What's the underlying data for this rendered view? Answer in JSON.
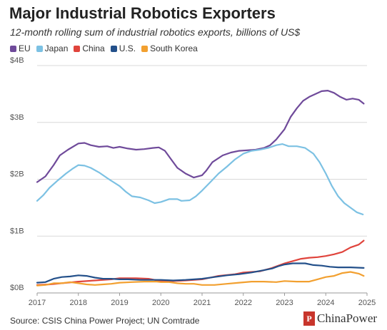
{
  "chart_data": {
    "type": "line",
    "title": "Major Industrial Robotics Exporters",
    "subtitle": "12-month rolling sum of industrial robotics exports, billions of US$",
    "xlabel": "",
    "ylabel": "",
    "xlim": [
      2017.0,
      2025.0
    ],
    "ylim": [
      0,
      4
    ],
    "x_ticks": [
      "2017",
      "2018",
      "2019",
      "2020",
      "2021",
      "2022",
      "2023",
      "2024",
      "2025"
    ],
    "y_ticks": [
      "$0B",
      "$1B",
      "$2B",
      "$3B",
      "$4B"
    ],
    "grid": "horizontal",
    "legend_position": "top-left",
    "series": [
      {
        "name": "EU",
        "color": "#6f4a9a",
        "points": [
          [
            2017.0,
            1.95
          ],
          [
            2017.2,
            2.05
          ],
          [
            2017.4,
            2.25
          ],
          [
            2017.55,
            2.42
          ],
          [
            2017.75,
            2.52
          ],
          [
            2018.0,
            2.63
          ],
          [
            2018.15,
            2.64
          ],
          [
            2018.3,
            2.6
          ],
          [
            2018.5,
            2.57
          ],
          [
            2018.7,
            2.58
          ],
          [
            2018.85,
            2.55
          ],
          [
            2019.0,
            2.57
          ],
          [
            2019.2,
            2.54
          ],
          [
            2019.4,
            2.52
          ],
          [
            2019.6,
            2.53
          ],
          [
            2019.8,
            2.55
          ],
          [
            2019.95,
            2.56
          ],
          [
            2020.1,
            2.5
          ],
          [
            2020.25,
            2.35
          ],
          [
            2020.4,
            2.2
          ],
          [
            2020.6,
            2.1
          ],
          [
            2020.8,
            2.03
          ],
          [
            2021.0,
            2.07
          ],
          [
            2021.1,
            2.15
          ],
          [
            2021.25,
            2.3
          ],
          [
            2021.5,
            2.42
          ],
          [
            2021.7,
            2.47
          ],
          [
            2021.9,
            2.5
          ],
          [
            2022.1,
            2.51
          ],
          [
            2022.3,
            2.52
          ],
          [
            2022.5,
            2.55
          ],
          [
            2022.65,
            2.6
          ],
          [
            2022.8,
            2.7
          ],
          [
            2023.0,
            2.88
          ],
          [
            2023.15,
            3.1
          ],
          [
            2023.3,
            3.25
          ],
          [
            2023.45,
            3.38
          ],
          [
            2023.6,
            3.45
          ],
          [
            2023.75,
            3.5
          ],
          [
            2023.9,
            3.55
          ],
          [
            2024.05,
            3.56
          ],
          [
            2024.2,
            3.52
          ],
          [
            2024.35,
            3.45
          ],
          [
            2024.5,
            3.4
          ],
          [
            2024.65,
            3.42
          ],
          [
            2024.8,
            3.4
          ],
          [
            2024.92,
            3.33
          ]
        ]
      },
      {
        "name": "Japan",
        "color": "#7cc1e3",
        "points": [
          [
            2017.0,
            1.62
          ],
          [
            2017.15,
            1.72
          ],
          [
            2017.3,
            1.85
          ],
          [
            2017.5,
            1.98
          ],
          [
            2017.7,
            2.1
          ],
          [
            2017.85,
            2.18
          ],
          [
            2018.0,
            2.25
          ],
          [
            2018.15,
            2.24
          ],
          [
            2018.3,
            2.2
          ],
          [
            2018.5,
            2.12
          ],
          [
            2018.7,
            2.02
          ],
          [
            2018.85,
            1.95
          ],
          [
            2019.0,
            1.88
          ],
          [
            2019.15,
            1.78
          ],
          [
            2019.3,
            1.7
          ],
          [
            2019.5,
            1.68
          ],
          [
            2019.7,
            1.63
          ],
          [
            2019.85,
            1.58
          ],
          [
            2020.0,
            1.6
          ],
          [
            2020.2,
            1.65
          ],
          [
            2020.4,
            1.65
          ],
          [
            2020.5,
            1.62
          ],
          [
            2020.7,
            1.63
          ],
          [
            2020.85,
            1.7
          ],
          [
            2021.0,
            1.8
          ],
          [
            2021.2,
            1.95
          ],
          [
            2021.4,
            2.1
          ],
          [
            2021.6,
            2.22
          ],
          [
            2021.8,
            2.35
          ],
          [
            2022.0,
            2.45
          ],
          [
            2022.2,
            2.5
          ],
          [
            2022.4,
            2.52
          ],
          [
            2022.6,
            2.55
          ],
          [
            2022.8,
            2.6
          ],
          [
            2022.95,
            2.62
          ],
          [
            2023.1,
            2.58
          ],
          [
            2023.3,
            2.58
          ],
          [
            2023.5,
            2.55
          ],
          [
            2023.7,
            2.45
          ],
          [
            2023.85,
            2.3
          ],
          [
            2024.0,
            2.1
          ],
          [
            2024.15,
            1.88
          ],
          [
            2024.3,
            1.7
          ],
          [
            2024.45,
            1.58
          ],
          [
            2024.6,
            1.5
          ],
          [
            2024.75,
            1.42
          ],
          [
            2024.9,
            1.38
          ]
        ]
      },
      {
        "name": "China",
        "color": "#e0443c",
        "points": [
          [
            2017.0,
            0.14
          ],
          [
            2017.3,
            0.15
          ],
          [
            2017.6,
            0.17
          ],
          [
            2018.0,
            0.2
          ],
          [
            2018.4,
            0.22
          ],
          [
            2018.8,
            0.24
          ],
          [
            2019.0,
            0.26
          ],
          [
            2019.4,
            0.26
          ],
          [
            2019.7,
            0.25
          ],
          [
            2020.0,
            0.21
          ],
          [
            2020.3,
            0.21
          ],
          [
            2020.6,
            0.22
          ],
          [
            2021.0,
            0.24
          ],
          [
            2021.4,
            0.3
          ],
          [
            2021.8,
            0.33
          ],
          [
            2022.0,
            0.36
          ],
          [
            2022.4,
            0.38
          ],
          [
            2022.7,
            0.44
          ],
          [
            2023.0,
            0.52
          ],
          [
            2023.2,
            0.56
          ],
          [
            2023.4,
            0.6
          ],
          [
            2023.6,
            0.62
          ],
          [
            2023.8,
            0.63
          ],
          [
            2024.0,
            0.65
          ],
          [
            2024.2,
            0.68
          ],
          [
            2024.4,
            0.72
          ],
          [
            2024.6,
            0.8
          ],
          [
            2024.8,
            0.85
          ],
          [
            2024.92,
            0.92
          ]
        ]
      },
      {
        "name": "U.S.",
        "color": "#23508a",
        "points": [
          [
            2017.0,
            0.18
          ],
          [
            2017.2,
            0.19
          ],
          [
            2017.4,
            0.25
          ],
          [
            2017.6,
            0.28
          ],
          [
            2017.8,
            0.29
          ],
          [
            2018.0,
            0.31
          ],
          [
            2018.2,
            0.3
          ],
          [
            2018.4,
            0.27
          ],
          [
            2018.6,
            0.25
          ],
          [
            2018.8,
            0.25
          ],
          [
            2019.0,
            0.24
          ],
          [
            2019.2,
            0.24
          ],
          [
            2019.5,
            0.23
          ],
          [
            2019.8,
            0.23
          ],
          [
            2020.0,
            0.23
          ],
          [
            2020.3,
            0.22
          ],
          [
            2020.6,
            0.23
          ],
          [
            2021.0,
            0.25
          ],
          [
            2021.3,
            0.28
          ],
          [
            2021.6,
            0.31
          ],
          [
            2021.9,
            0.33
          ],
          [
            2022.2,
            0.36
          ],
          [
            2022.5,
            0.4
          ],
          [
            2022.7,
            0.43
          ],
          [
            2022.85,
            0.47
          ],
          [
            2023.0,
            0.5
          ],
          [
            2023.2,
            0.52
          ],
          [
            2023.5,
            0.52
          ],
          [
            2023.7,
            0.49
          ],
          [
            2023.9,
            0.48
          ],
          [
            2024.1,
            0.46
          ],
          [
            2024.3,
            0.45
          ],
          [
            2024.6,
            0.45
          ],
          [
            2024.92,
            0.44
          ]
        ]
      },
      {
        "name": "South Korea",
        "color": "#f2a030",
        "points": [
          [
            2017.0,
            0.13
          ],
          [
            2017.2,
            0.14
          ],
          [
            2017.4,
            0.17
          ],
          [
            2017.6,
            0.17
          ],
          [
            2017.8,
            0.19
          ],
          [
            2018.0,
            0.17
          ],
          [
            2018.2,
            0.15
          ],
          [
            2018.4,
            0.14
          ],
          [
            2018.6,
            0.15
          ],
          [
            2018.8,
            0.16
          ],
          [
            2019.0,
            0.18
          ],
          [
            2019.3,
            0.19
          ],
          [
            2019.6,
            0.2
          ],
          [
            2019.9,
            0.2
          ],
          [
            2020.0,
            0.19
          ],
          [
            2020.2,
            0.19
          ],
          [
            2020.4,
            0.17
          ],
          [
            2020.6,
            0.16
          ],
          [
            2020.8,
            0.16
          ],
          [
            2021.0,
            0.14
          ],
          [
            2021.3,
            0.14
          ],
          [
            2021.6,
            0.16
          ],
          [
            2021.9,
            0.18
          ],
          [
            2022.2,
            0.2
          ],
          [
            2022.5,
            0.2
          ],
          [
            2022.8,
            0.19
          ],
          [
            2023.0,
            0.21
          ],
          [
            2023.3,
            0.2
          ],
          [
            2023.6,
            0.2
          ],
          [
            2023.8,
            0.24
          ],
          [
            2024.0,
            0.28
          ],
          [
            2024.2,
            0.3
          ],
          [
            2024.4,
            0.35
          ],
          [
            2024.6,
            0.37
          ],
          [
            2024.8,
            0.34
          ],
          [
            2024.92,
            0.3
          ]
        ]
      }
    ]
  },
  "footer": {
    "source": "Source: CSIS China Power Project; UN Comtrade",
    "brand_mark": "P",
    "brand_name": "ChinaPower"
  }
}
